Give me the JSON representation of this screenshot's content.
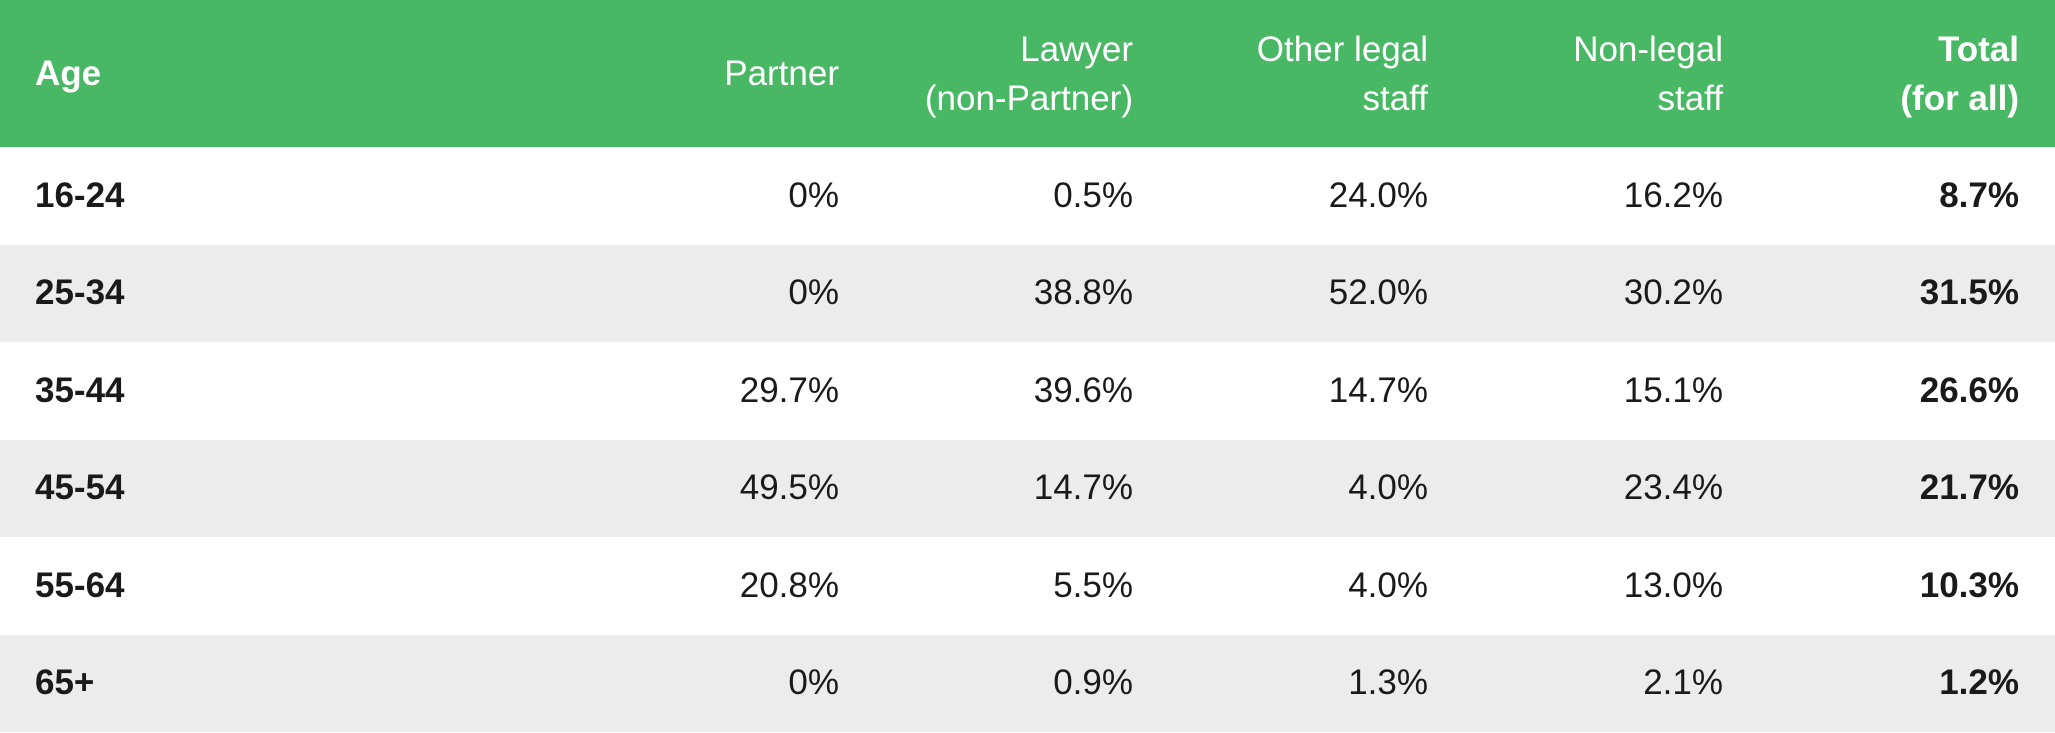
{
  "chart_data": {
    "type": "table",
    "header_color": "#48b864",
    "stripe_color": "#ebeceb",
    "columns": [
      "Age",
      "Partner",
      "Lawyer\n(non-Partner)",
      "Other legal\nstaff",
      "Non-legal\nstaff",
      "Total\n(for all)"
    ],
    "rows": [
      [
        "16-24",
        "0%",
        "0.5%",
        "24.0%",
        "16.2%",
        "8.7%"
      ],
      [
        "25-34",
        "0%",
        "38.8%",
        "52.0%",
        "30.2%",
        "31.5%"
      ],
      [
        "35-44",
        "29.7%",
        "39.6%",
        "14.7%",
        "15.1%",
        "26.6%"
      ],
      [
        "45-54",
        "49.5%",
        "14.7%",
        "4.0%",
        "23.4%",
        "21.7%"
      ],
      [
        "55-64",
        "20.8%",
        "5.5%",
        "4.0%",
        "13.0%",
        "10.3%"
      ],
      [
        "65+",
        "0%",
        "0.9%",
        "1.3%",
        "2.1%",
        "1.2%"
      ]
    ]
  }
}
